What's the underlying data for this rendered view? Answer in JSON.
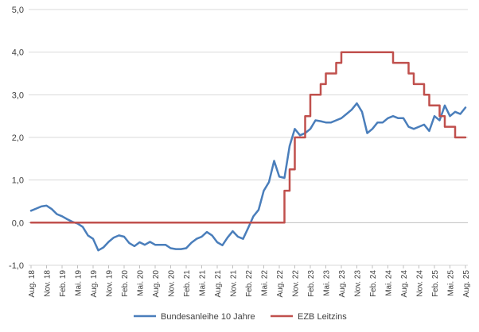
{
  "chart_data": {
    "type": "line",
    "title": "",
    "xlabel": "",
    "ylabel": "",
    "ylim": [
      -1.0,
      5.0
    ],
    "y_ticks": [
      "5,0",
      "4,0",
      "3,0",
      "2,0",
      "1,0",
      "0,0",
      "-1,0"
    ],
    "y_tick_values": [
      5,
      4,
      3,
      2,
      1,
      0,
      -1
    ],
    "grid": "horizontal",
    "legend_position": "bottom",
    "x_tick_labels": [
      "Aug. 18",
      "Nov. 18",
      "Feb. 19",
      "Mai. 19",
      "Aug. 19",
      "Nov. 19",
      "Feb. 20",
      "Mai. 20",
      "Aug. 20",
      "Nov. 20",
      "Feb. 21",
      "Mai. 21",
      "Aug. 21",
      "Nov. 21",
      "Feb. 22",
      "Mai. 22",
      "Aug. 22",
      "Nov. 22",
      "Feb. 23",
      "Mai. 23",
      "Aug. 23",
      "Nov. 23",
      "Feb. 24",
      "Mai. 24",
      "Aug. 24",
      "Nov. 24",
      "Feb. 25",
      "Mai. 25",
      "Aug. 25"
    ],
    "x_months": [
      "2018-08",
      "2018-09",
      "2018-10",
      "2018-11",
      "2018-12",
      "2019-01",
      "2019-02",
      "2019-03",
      "2019-04",
      "2019-05",
      "2019-06",
      "2019-07",
      "2019-08",
      "2019-09",
      "2019-10",
      "2019-11",
      "2019-12",
      "2020-01",
      "2020-02",
      "2020-03",
      "2020-04",
      "2020-05",
      "2020-06",
      "2020-07",
      "2020-08",
      "2020-09",
      "2020-10",
      "2020-11",
      "2020-12",
      "2021-01",
      "2021-02",
      "2021-03",
      "2021-04",
      "2021-05",
      "2021-06",
      "2021-07",
      "2021-08",
      "2021-09",
      "2021-10",
      "2021-11",
      "2021-12",
      "2022-01",
      "2022-02",
      "2022-03",
      "2022-04",
      "2022-05",
      "2022-06",
      "2022-07",
      "2022-08",
      "2022-09",
      "2022-10",
      "2022-11",
      "2022-12",
      "2023-01",
      "2023-02",
      "2023-03",
      "2023-04",
      "2023-05",
      "2023-06",
      "2023-07",
      "2023-08",
      "2023-09",
      "2023-10",
      "2023-11",
      "2023-12",
      "2024-01",
      "2024-02",
      "2024-03",
      "2024-04",
      "2024-05",
      "2024-06",
      "2024-07",
      "2024-08",
      "2024-09",
      "2024-10",
      "2024-11",
      "2024-12",
      "2025-01",
      "2025-02",
      "2025-03",
      "2025-04",
      "2025-05",
      "2025-06",
      "2025-07",
      "2025-08"
    ],
    "series": [
      {
        "name": "Bundesanleihe 10 Jahre",
        "color": "#4a7ebb",
        "line": "solid",
        "values": [
          0.28,
          0.33,
          0.38,
          0.4,
          0.32,
          0.2,
          0.15,
          0.08,
          0.02,
          -0.02,
          -0.1,
          -0.3,
          -0.38,
          -0.65,
          -0.58,
          -0.45,
          -0.35,
          -0.3,
          -0.33,
          -0.48,
          -0.55,
          -0.46,
          -0.52,
          -0.45,
          -0.52,
          -0.52,
          -0.52,
          -0.6,
          -0.62,
          -0.62,
          -0.6,
          -0.47,
          -0.38,
          -0.33,
          -0.22,
          -0.3,
          -0.46,
          -0.53,
          -0.35,
          -0.2,
          -0.33,
          -0.38,
          -0.12,
          0.15,
          0.3,
          0.75,
          0.95,
          1.45,
          1.08,
          1.05,
          1.8,
          2.2,
          2.05,
          2.1,
          2.2,
          2.4,
          2.38,
          2.35,
          2.35,
          2.4,
          2.45,
          2.55,
          2.65,
          2.8,
          2.6,
          2.1,
          2.2,
          2.35,
          2.35,
          2.45,
          2.5,
          2.45,
          2.45,
          2.25,
          2.2,
          2.25,
          2.3,
          2.15,
          2.5,
          2.4,
          2.75,
          2.5,
          2.6,
          2.55,
          2.7
        ]
      },
      {
        "name": "EZB Leitzins",
        "color": "#c0504d",
        "line": "step",
        "values": [
          0,
          0,
          0,
          0,
          0,
          0,
          0,
          0,
          0,
          0,
          0,
          0,
          0,
          0,
          0,
          0,
          0,
          0,
          0,
          0,
          0,
          0,
          0,
          0,
          0,
          0,
          0,
          0,
          0,
          0,
          0,
          0,
          0,
          0,
          0,
          0,
          0,
          0,
          0,
          0,
          0,
          0,
          0,
          0,
          0,
          0,
          0,
          0,
          0,
          0.75,
          1.25,
          2.0,
          2.0,
          2.5,
          3.0,
          3.0,
          3.25,
          3.5,
          3.5,
          3.75,
          4.0,
          4.0,
          4.0,
          4.0,
          4.0,
          4.0,
          4.0,
          4.0,
          4.0,
          4.0,
          3.75,
          3.75,
          3.75,
          3.5,
          3.25,
          3.25,
          3.0,
          2.75,
          2.75,
          2.5,
          2.25,
          2.25,
          2.0,
          2.0,
          2.0
        ]
      }
    ]
  }
}
